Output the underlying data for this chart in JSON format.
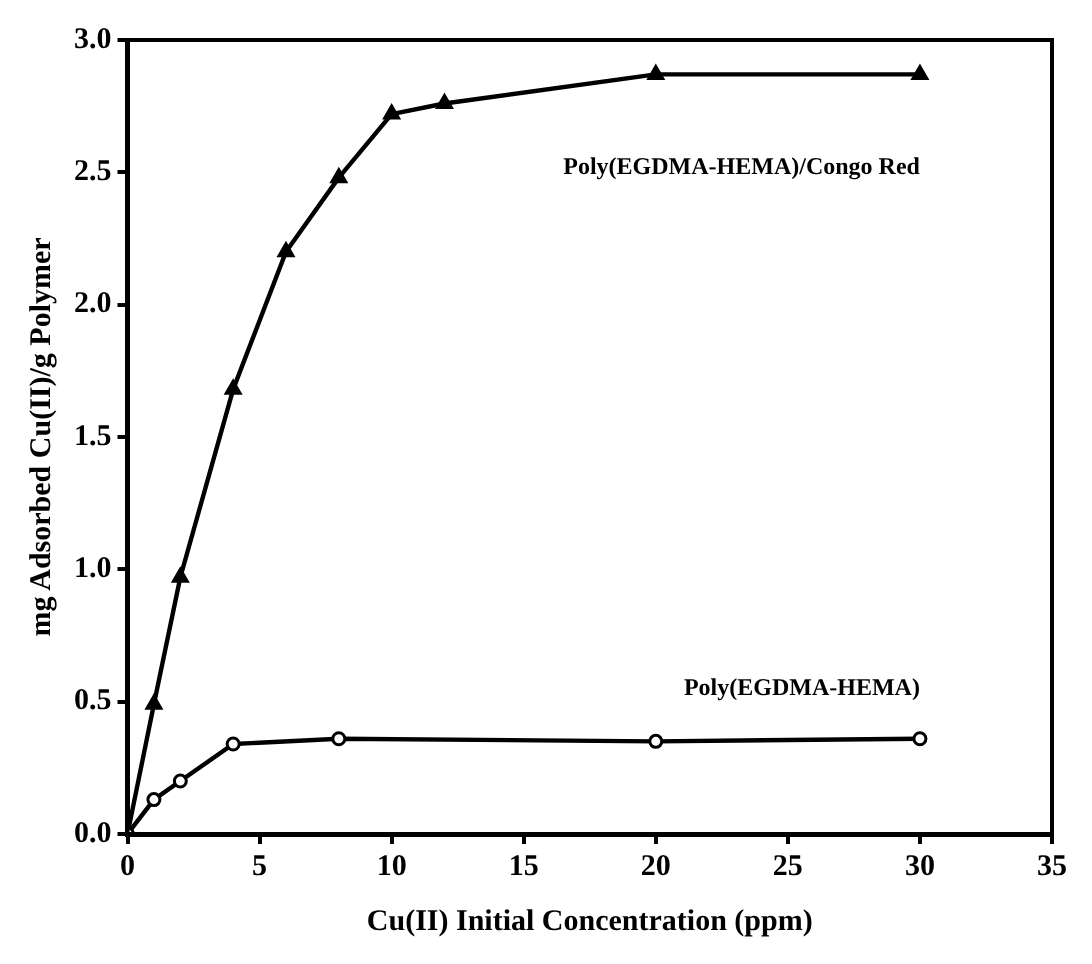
{
  "chart_data": {
    "type": "line",
    "xlabel": "Cu(II) Initial Concentration (ppm)",
    "ylabel": "mg Adsorbed Cu(II)/g Polymer",
    "xlim": [
      0,
      35
    ],
    "xticks": [
      0,
      5,
      10,
      15,
      20,
      25,
      30,
      35
    ],
    "ylim": [
      0,
      3
    ],
    "yticks": [
      {
        "value": 0,
        "label": "0.0"
      },
      {
        "value": 0.5,
        "label": "0.5"
      },
      {
        "value": 1,
        "label": "1.0"
      },
      {
        "value": 1.5,
        "label": "1.5"
      },
      {
        "value": 2,
        "label": "2.0"
      },
      {
        "value": 2.5,
        "label": "2.5"
      },
      {
        "value": 3,
        "label": "3.0"
      }
    ],
    "grid": false,
    "legend": false,
    "line_style": "solid",
    "series": [
      {
        "name": "Poly(EGDMA-HEMA)",
        "color": "#000000",
        "marker": "circle",
        "x": [
          0,
          1,
          2,
          4,
          8,
          20,
          30
        ],
        "values": [
          0,
          0.13,
          0.2,
          0.34,
          0.36,
          0.35,
          0.36
        ]
      },
      {
        "name": "Poly(EGDMA-HEMA)/Congo Red",
        "color": "#000000",
        "marker": "triangle",
        "x": [
          0,
          1,
          2,
          4,
          6,
          8,
          10,
          12,
          20,
          30
        ],
        "values": [
          0,
          0.49,
          0.97,
          1.68,
          2.2,
          2.48,
          2.72,
          2.76,
          2.87,
          2.87
        ]
      }
    ]
  }
}
